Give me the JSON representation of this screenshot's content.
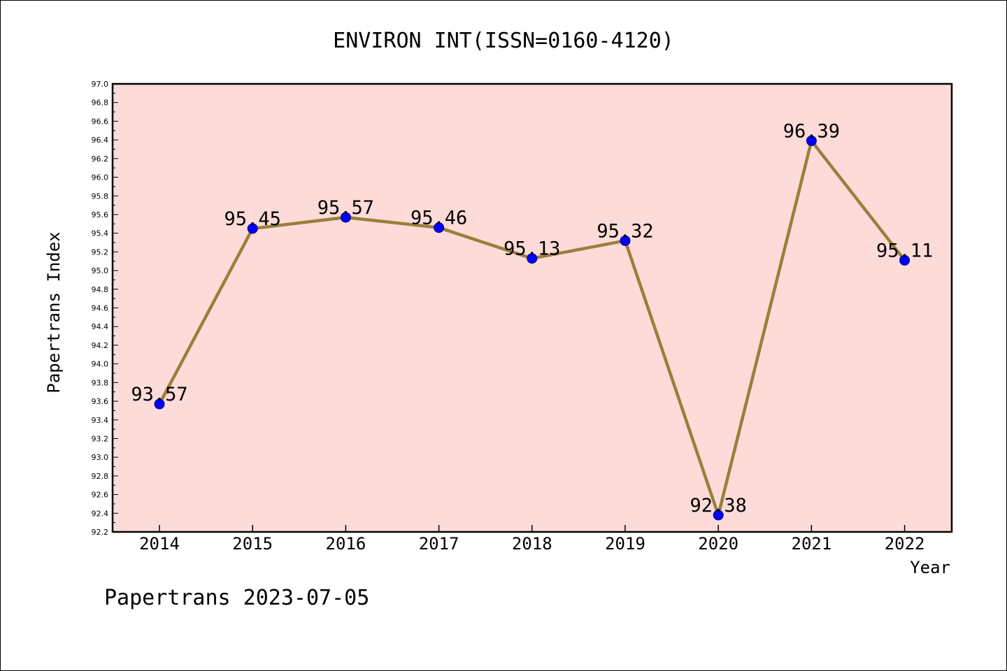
{
  "chart_data": {
    "type": "line",
    "title": "ENVIRON INT(ISSN=0160-4120)",
    "xlabel": "Year",
    "ylabel": "Papertrans Index",
    "categories": [
      "2014",
      "2015",
      "2016",
      "2017",
      "2018",
      "2019",
      "2020",
      "2021",
      "2022"
    ],
    "values": [
      93.57,
      95.45,
      95.57,
      95.46,
      95.13,
      95.32,
      92.38,
      96.39,
      95.11
    ],
    "data_labels": [
      "93.57",
      "95.45",
      "95.57",
      "95.46",
      "95.13",
      "95.32",
      "92.38",
      "96.39",
      "95.11"
    ],
    "ylim": [
      92.2,
      97.0
    ],
    "yticks": [
      "92.2",
      "92.4",
      "92.6",
      "92.8",
      "93.0",
      "93.2",
      "93.4",
      "93.6",
      "93.8",
      "94.0",
      "94.2",
      "94.4",
      "94.6",
      "94.8",
      "95.0",
      "95.2",
      "95.4",
      "95.6",
      "95.8",
      "96.0",
      "96.2",
      "96.4",
      "96.6",
      "96.8",
      "97.0"
    ],
    "grid": false,
    "colors": {
      "plot_background": "#fddbd8",
      "line": "#9a7f3c",
      "marker": "#0000ff"
    }
  },
  "footer": "Papertrans 2023-07-05"
}
